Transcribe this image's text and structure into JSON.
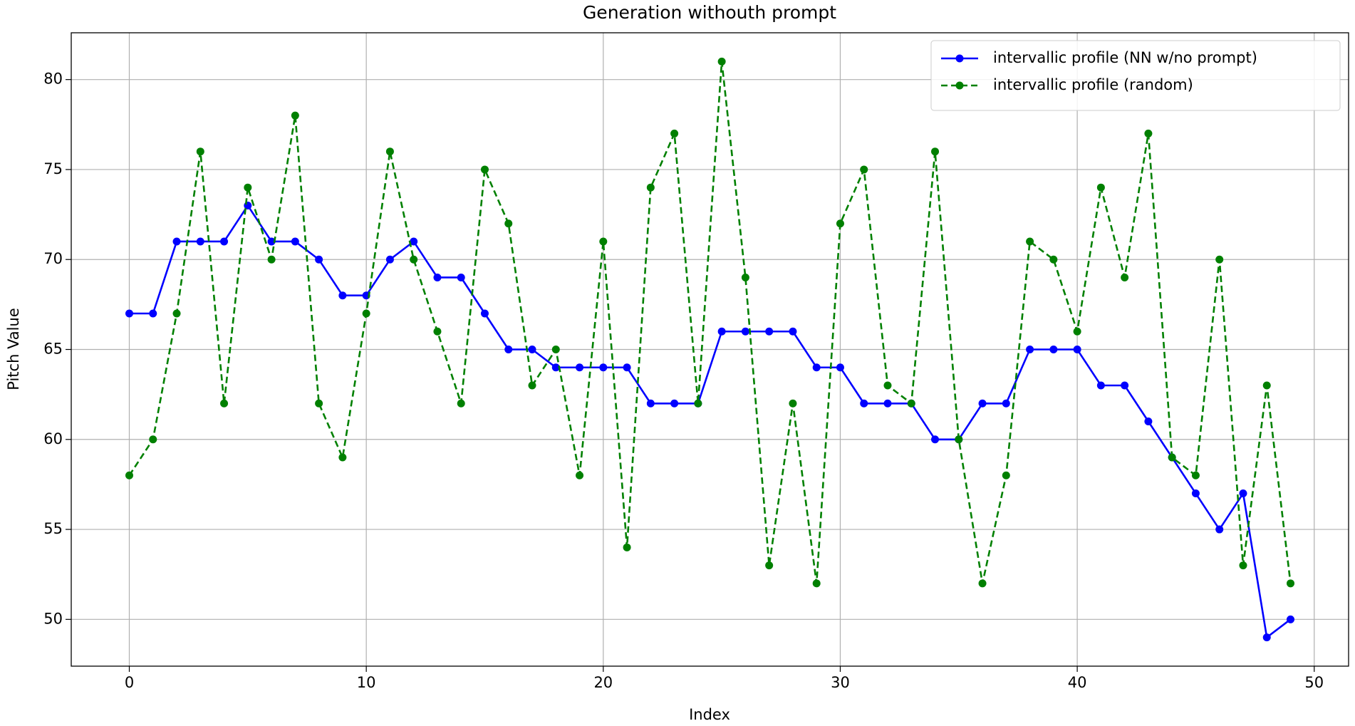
{
  "chart_data": {
    "type": "line",
    "title": "Generation withouth prompt",
    "x_label": "Index",
    "y_label": "Pitch Value",
    "x": [
      0,
      1,
      2,
      3,
      4,
      5,
      6,
      7,
      8,
      9,
      10,
      11,
      12,
      13,
      14,
      15,
      16,
      17,
      18,
      19,
      20,
      21,
      22,
      23,
      24,
      25,
      26,
      27,
      28,
      29,
      30,
      31,
      32,
      33,
      34,
      35,
      36,
      37,
      38,
      39,
      40,
      41,
      42,
      43,
      44,
      45,
      46,
      47,
      48,
      49
    ],
    "series": [
      {
        "name": "intervallic profile (NN w/no prompt)",
        "color": "#0000ff",
        "linestyle": "solid",
        "marker": "o",
        "values": [
          67,
          67,
          71,
          71,
          71,
          73,
          71,
          71,
          70,
          68,
          68,
          70,
          71,
          69,
          69,
          67,
          65,
          65,
          64,
          64,
          64,
          64,
          62,
          62,
          62,
          66,
          66,
          66,
          66,
          64,
          64,
          62,
          62,
          62,
          60,
          60,
          62,
          62,
          65,
          65,
          65,
          63,
          63,
          61,
          59,
          57,
          55,
          57,
          49,
          50
        ]
      },
      {
        "name": "intervallic profile (random)",
        "color": "#008000",
        "linestyle": "dashed",
        "marker": "o",
        "values": [
          58,
          60,
          67,
          76,
          62,
          74,
          70,
          78,
          62,
          59,
          67,
          76,
          70,
          66,
          62,
          75,
          72,
          63,
          65,
          58,
          71,
          54,
          74,
          77,
          62,
          81,
          69,
          53,
          62,
          52,
          72,
          75,
          63,
          62,
          76,
          60,
          52,
          58,
          71,
          70,
          66,
          74,
          69,
          77,
          59,
          58,
          70,
          53,
          63,
          52
        ]
      }
    ],
    "xlim": [
      -2.45,
      51.45
    ],
    "ylim": [
      47.4,
      82.6
    ],
    "xticks": [
      0,
      10,
      20,
      30,
      40,
      50
    ],
    "yticks": [
      50,
      55,
      60,
      65,
      70,
      75,
      80
    ],
    "grid": true,
    "legend": "upper right"
  }
}
